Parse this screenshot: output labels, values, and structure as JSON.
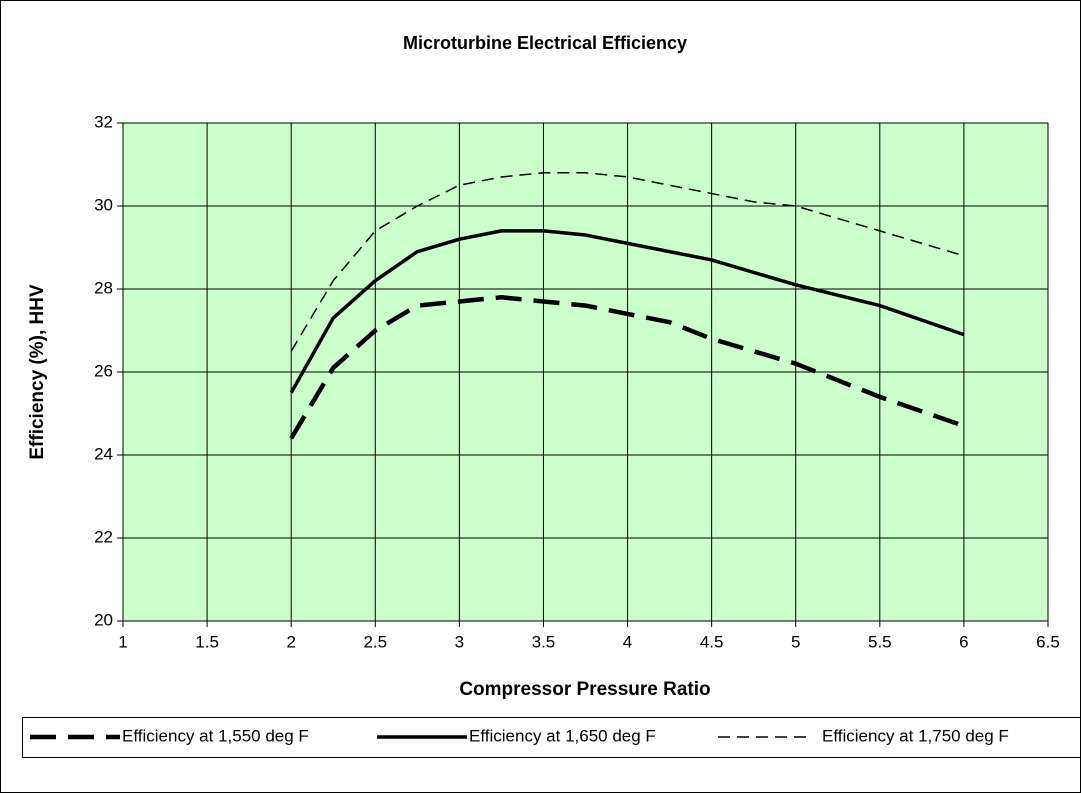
{
  "chart_data": {
    "type": "line",
    "title": "Microturbine Electrical Efficiency",
    "x_label": "Compressor Pressure Ratio",
    "y_label": "Efficiency (%), HHV",
    "xlim": [
      1,
      6.5
    ],
    "xticks": [
      1,
      1.5,
      2,
      2.5,
      3,
      3.5,
      4,
      4.5,
      5,
      5.5,
      6,
      6.5
    ],
    "ylim": [
      20,
      32
    ],
    "yticks": [
      20,
      22,
      24,
      26,
      28,
      30,
      32
    ],
    "grid": true,
    "background": "#ccffcc",
    "legend": "bottom",
    "series": [
      {
        "name": "Efficiency at 1,550 deg F",
        "color": "#000000",
        "linestyle": "long-dash",
        "x": [
          2,
          2.25,
          2.5,
          2.75,
          3,
          3.25,
          3.5,
          3.75,
          4,
          4.25,
          4.5,
          5,
          5.5,
          6
        ],
        "values": [
          24.4,
          26.1,
          27.0,
          27.6,
          27.7,
          27.8,
          27.7,
          27.6,
          27.4,
          27.2,
          26.8,
          26.2,
          25.4,
          24.7
        ]
      },
      {
        "name": "Efficiency at 1,650 deg F",
        "color": "#000000",
        "linestyle": "solid",
        "x": [
          2,
          2.25,
          2.5,
          2.75,
          3,
          3.25,
          3.5,
          3.75,
          4,
          4.5,
          5,
          5.5,
          6
        ],
        "values": [
          25.5,
          27.3,
          28.2,
          28.9,
          29.2,
          29.4,
          29.4,
          29.3,
          29.1,
          28.7,
          28.1,
          27.6,
          26.9
        ]
      },
      {
        "name": "Efficiency at 1,750 deg F",
        "color": "#000000",
        "linestyle": "dash",
        "x": [
          2,
          2.25,
          2.5,
          2.75,
          3,
          3.25,
          3.5,
          3.75,
          4,
          4.5,
          4.75,
          5,
          5.5,
          6
        ],
        "values": [
          26.5,
          28.2,
          29.4,
          30.0,
          30.5,
          30.7,
          30.8,
          30.8,
          30.7,
          30.3,
          30.1,
          30.0,
          29.4,
          28.8
        ]
      }
    ]
  }
}
